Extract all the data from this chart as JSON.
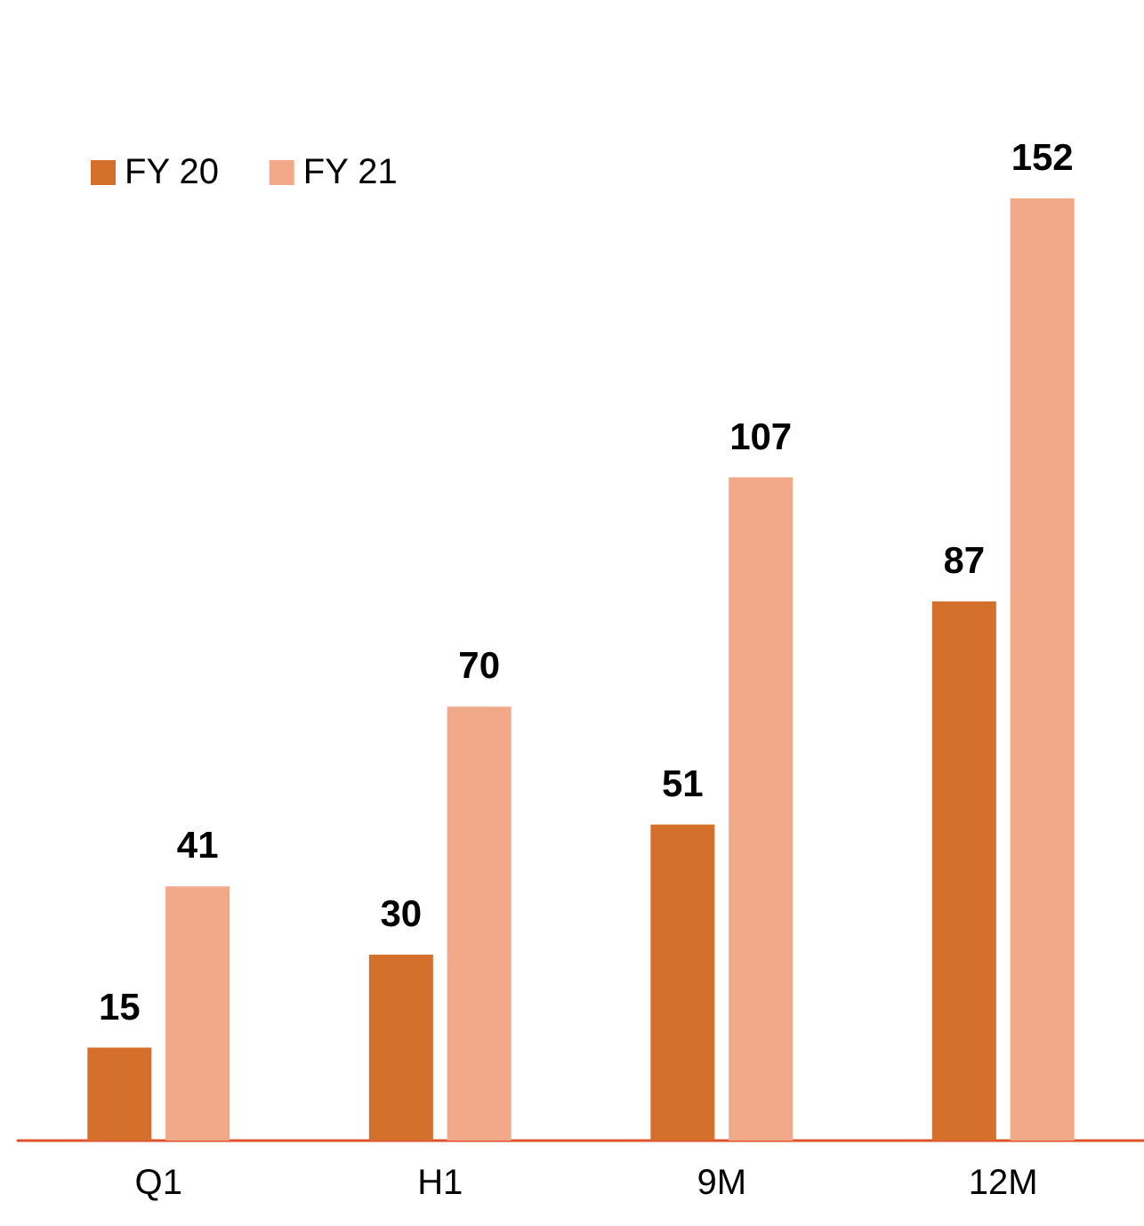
{
  "chart_data": {
    "type": "bar",
    "categories": [
      "Q1",
      "H1",
      "9M",
      "12M"
    ],
    "series": [
      {
        "name": "FY 20",
        "color": "#d4702c",
        "values": [
          15,
          30,
          51,
          87
        ]
      },
      {
        "name": "FY 21",
        "color": "#f2a98a",
        "values": [
          41,
          70,
          107,
          152
        ]
      }
    ],
    "data_labels": true,
    "legend": "top left",
    "grid": false
  }
}
